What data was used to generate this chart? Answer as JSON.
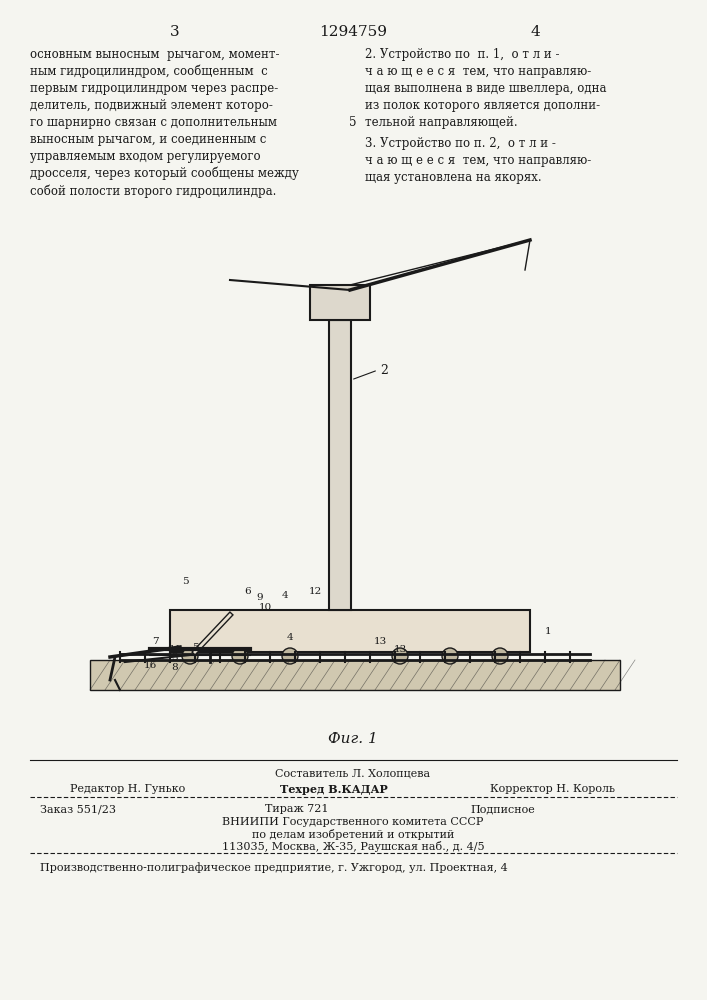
{
  "page_number_left": "3",
  "patent_number": "1294759",
  "page_number_right": "4",
  "col_left_text": [
    "основным выносным  рычагом, момент-",
    "ным гидроцилиндром, сообщенным  с",
    "первым гидроцилиндром через распре-",
    "делитель, подвижный элемент которо-",
    "го шарнирно связан с дополнительным",
    "выносным рычагом, и соединенным с",
    "управляемым входом регулируемого",
    "дросселя, через который сообщены между",
    "собой полости второго гидроцилиндра."
  ],
  "col_right_text_blocks": [
    {
      "number": "2",
      "text": [
        " Устройство по  п. 1,  о т л и -",
        "ч а ю щ е е с я  тем, что направляю-",
        "щая выполнена в виде швеллера, одна",
        "из полок которого является дополни-",
        "тельной направляющей."
      ]
    },
    {
      "number": "3",
      "text": [
        " Устройство по п. 2,  о т л и -",
        "ч а ю щ е е с я  тем, что направляю-",
        "щая установлена на якорях."
      ]
    }
  ],
  "line_number_5": "5",
  "fig_label": "Фиг. 1",
  "footer_editor": "Редактор Н. Гунько",
  "footer_tech": "Техред В.КАДАР",
  "footer_corrector": "Корректор Н. Король",
  "footer_compiler_label": "Составитель Л. Холопцева",
  "footer_order": "Заказ 551/23",
  "footer_edition": "Тираж 721",
  "footer_subscription": "Подписное",
  "footer_org1": "ВНИИПИ Государственного комитета СССР",
  "footer_org2": "по делам изобретений и открытий",
  "footer_address": "113035, Москва, Ж-35, Раушская наб., д. 4/5",
  "footer_production": "Производственно-полиграфическое предприятие, г. Ужгород, ул. Проектная, 4",
  "bg_color": "#f5f5f0",
  "text_color": "#1a1a1a"
}
